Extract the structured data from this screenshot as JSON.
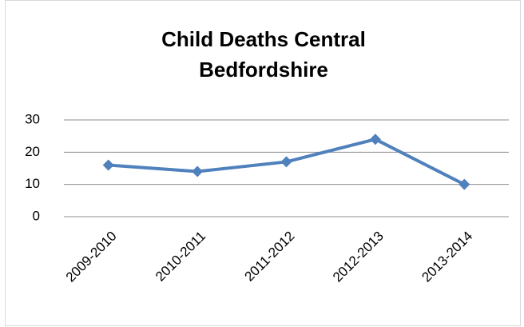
{
  "chart_data": {
    "type": "line",
    "title": "Child Deaths Central Bedfordshire",
    "categories": [
      "2009-2010",
      "2010-2011",
      "2011-2012",
      "2012-2013",
      "2013-2014"
    ],
    "values": [
      16,
      14,
      17,
      24,
      10
    ],
    "color": "#4f81bd",
    "ylim": [
      0,
      30
    ],
    "yticks": [
      0,
      10,
      20,
      30
    ],
    "grid": true
  }
}
